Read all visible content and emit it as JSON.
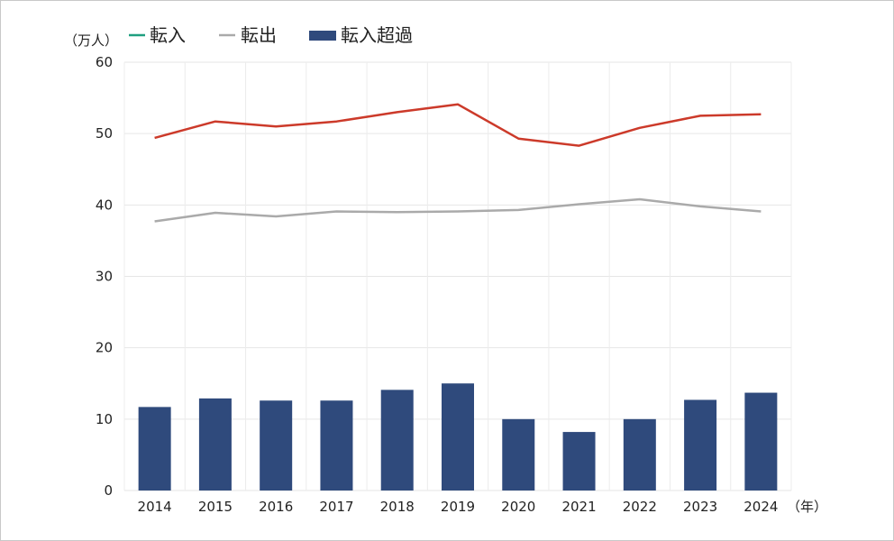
{
  "chart_data": {
    "type": "bar",
    "y_unit_label": "（万人）",
    "x_unit_label": "（年）",
    "categories": [
      "2014",
      "2015",
      "2016",
      "2017",
      "2018",
      "2019",
      "2020",
      "2021",
      "2022",
      "2023",
      "2024"
    ],
    "ylim": [
      0,
      60
    ],
    "yticks": [
      0,
      10,
      20,
      30,
      40,
      50,
      60
    ],
    "grid": true,
    "legend_position": "top-left",
    "series": [
      {
        "name": "転入",
        "kind": "line",
        "color": "#cc3a2a",
        "legend_color": "#1f9f80",
        "values": [
          49.4,
          51.7,
          51.0,
          51.7,
          53.0,
          54.1,
          49.3,
          48.3,
          50.8,
          52.5,
          52.7
        ]
      },
      {
        "name": "転出",
        "kind": "line",
        "color": "#aaaaaa",
        "legend_color": "#aaaaaa",
        "values": [
          37.7,
          38.9,
          38.4,
          39.1,
          39.0,
          39.1,
          39.3,
          40.1,
          40.8,
          39.8,
          39.1
        ]
      },
      {
        "name": "転入超過",
        "kind": "bar",
        "color": "#2f4a7c",
        "legend_color": "#2f4a7c",
        "values": [
          11.7,
          12.9,
          12.6,
          12.6,
          14.1,
          15.0,
          10.0,
          8.2,
          10.0,
          12.7,
          13.7
        ]
      }
    ]
  }
}
